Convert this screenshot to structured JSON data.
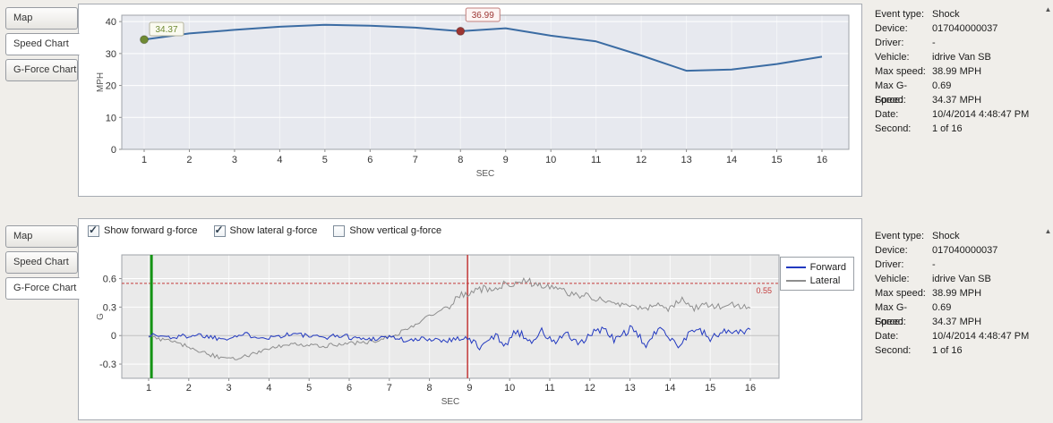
{
  "tabs": {
    "items": [
      "Map",
      "Speed Chart",
      "G-Force Chart"
    ],
    "top_active_index": 1,
    "bottom_active_index": 2
  },
  "event_info": {
    "rows": [
      {
        "label": "Event type:",
        "value": "Shock"
      },
      {
        "label": "Device:",
        "value": "017040000037"
      },
      {
        "label": "Driver:",
        "value": "-"
      },
      {
        "label": "Vehicle:",
        "value": "idrive Van SB"
      },
      {
        "label": "Max speed:",
        "value": "38.99 MPH"
      },
      {
        "label": "Max G-Force:",
        "value": "0.69"
      },
      {
        "label": "Speed:",
        "value": "34.37 MPH"
      },
      {
        "label": "Date:",
        "value": "10/4/2014 4:48:47 PM"
      },
      {
        "label": "Second:",
        "value": "1 of 16"
      }
    ]
  },
  "gforce_controls": {
    "checkboxes": [
      {
        "label": "Show forward g-force",
        "checked": true
      },
      {
        "label": "Show lateral g-force",
        "checked": true
      },
      {
        "label": "Show vertical g-force",
        "checked": false
      }
    ]
  },
  "chart_data": [
    {
      "id": "speed",
      "type": "line",
      "title": "",
      "xlabel": "SEC",
      "ylabel": "MPH",
      "x": [
        1,
        2,
        3,
        4,
        5,
        6,
        7,
        8,
        9,
        10,
        11,
        12,
        13,
        14,
        15,
        16
      ],
      "values": [
        34.37,
        36.3,
        37.4,
        38.4,
        38.99,
        38.7,
        38.1,
        36.99,
        37.9,
        35.6,
        33.8,
        29.4,
        24.6,
        25.0,
        26.7,
        29.0
      ],
      "ylim": [
        0,
        42
      ],
      "yticks": [
        0,
        10,
        20,
        30,
        40
      ],
      "xticks": [
        1,
        2,
        3,
        4,
        5,
        6,
        7,
        8,
        9,
        10,
        11,
        12,
        13,
        14,
        15,
        16
      ],
      "line_color": "#3b6ca3",
      "plot_bg": "#e7e9ef",
      "markers": [
        {
          "x": 1,
          "value": 34.37,
          "label": "34.37",
          "color": "#6f8a33",
          "box_bg": "#fafaf0",
          "box_border": "#b4b49c"
        },
        {
          "x": 8,
          "value": 36.99,
          "label": "36.99",
          "color": "#9c3532",
          "box_bg": "#fdf4f3",
          "box_border": "#c17f7c"
        }
      ]
    },
    {
      "id": "gforce",
      "type": "line",
      "title": "",
      "xlabel": "SEC",
      "ylabel": "G",
      "ylim": [
        -0.45,
        0.85
      ],
      "yticks": [
        -0.3,
        0,
        0.3,
        0.6
      ],
      "xticks": [
        1,
        2,
        3,
        4,
        5,
        6,
        7,
        8,
        9,
        10,
        11,
        12,
        13,
        14,
        15,
        16
      ],
      "plot_bg": "#eaeaea",
      "threshold": {
        "value": 0.55,
        "label": "0.55",
        "color": "#c43b3b"
      },
      "event_lines": [
        {
          "name": "current-second-line",
          "x": 1.07,
          "color": "#149414",
          "width": 3
        },
        {
          "name": "shock-moment-line",
          "x": 8.95,
          "color": "#c43b3b",
          "width": 1.5
        }
      ],
      "noise_seed": 1337,
      "sample_step": 0.05,
      "legend_position": "top-right",
      "series": [
        {
          "name": "Forward",
          "color": "#2239c0",
          "noise": [
            {
              "to": 9,
              "amp": 0.028
            },
            {
              "to": 15.5,
              "amp": 0.045
            },
            {
              "to": 16,
              "amp": 0.03
            }
          ],
          "envelope": [
            [
              1,
              0.01
            ],
            [
              1.6,
              -0.02
            ],
            [
              2.2,
              0.01
            ],
            [
              2.8,
              -0.03
            ],
            [
              3.4,
              0.01
            ],
            [
              4,
              -0.02
            ],
            [
              4.6,
              0.02
            ],
            [
              5.2,
              -0.02
            ],
            [
              5.8,
              0.0
            ],
            [
              6.4,
              -0.04
            ],
            [
              7,
              -0.01
            ],
            [
              7.5,
              -0.06
            ],
            [
              7.9,
              -0.03
            ],
            [
              8.4,
              -0.05
            ],
            [
              8.9,
              -0.02
            ],
            [
              9.3,
              -0.13
            ],
            [
              9.6,
              0.0
            ],
            [
              9.9,
              -0.08
            ],
            [
              10.2,
              0.05
            ],
            [
              10.5,
              -0.06
            ],
            [
              10.8,
              0.04
            ],
            [
              11.1,
              -0.08
            ],
            [
              11.4,
              0.03
            ],
            [
              11.7,
              -0.11
            ],
            [
              12,
              0.0
            ],
            [
              12.3,
              0.08
            ],
            [
              12.6,
              -0.05
            ],
            [
              13,
              0.07
            ],
            [
              13.4,
              -0.09
            ],
            [
              13.8,
              0.09
            ],
            [
              14.2,
              -0.11
            ],
            [
              14.6,
              0.08
            ],
            [
              15,
              -0.03
            ],
            [
              15.4,
              0.05
            ],
            [
              15.8,
              0.03
            ],
            [
              16,
              0.07
            ]
          ]
        },
        {
          "name": "Lateral",
          "color": "#8e8e8e",
          "noise": [
            {
              "to": 8.2,
              "amp": 0.022
            },
            {
              "to": 12.5,
              "amp": 0.04
            },
            {
              "to": 16,
              "amp": 0.035
            }
          ],
          "envelope": [
            [
              1,
              -0.01
            ],
            [
              1.4,
              -0.05
            ],
            [
              1.8,
              -0.09
            ],
            [
              2.2,
              -0.15
            ],
            [
              2.6,
              -0.21
            ],
            [
              3,
              -0.25
            ],
            [
              3.4,
              -0.22
            ],
            [
              3.8,
              -0.17
            ],
            [
              4.2,
              -0.12
            ],
            [
              4.6,
              -0.1
            ],
            [
              5,
              -0.09
            ],
            [
              5.4,
              -0.11
            ],
            [
              5.8,
              -0.09
            ],
            [
              6.2,
              -0.08
            ],
            [
              6.6,
              -0.06
            ],
            [
              7,
              -0.02
            ],
            [
              7.3,
              0.04
            ],
            [
              7.6,
              0.11
            ],
            [
              7.9,
              0.18
            ],
            [
              8.2,
              0.26
            ],
            [
              8.5,
              0.32
            ],
            [
              8.8,
              0.43
            ],
            [
              9.1,
              0.46
            ],
            [
              9.4,
              0.5
            ],
            [
              9.7,
              0.47
            ],
            [
              9.9,
              0.57
            ],
            [
              10.1,
              0.51
            ],
            [
              10.35,
              0.6
            ],
            [
              10.6,
              0.54
            ],
            [
              10.9,
              0.52
            ],
            [
              11.2,
              0.48
            ],
            [
              11.5,
              0.45
            ],
            [
              11.8,
              0.43
            ],
            [
              12.1,
              0.39
            ],
            [
              12.4,
              0.36
            ],
            [
              12.7,
              0.33
            ],
            [
              13,
              0.31
            ],
            [
              13.35,
              0.27
            ],
            [
              13.7,
              0.33
            ],
            [
              14,
              0.28
            ],
            [
              14.3,
              0.39
            ],
            [
              14.6,
              0.29
            ],
            [
              14.9,
              0.34
            ],
            [
              15.2,
              0.3
            ],
            [
              15.5,
              0.33
            ],
            [
              15.8,
              0.29
            ],
            [
              16,
              0.31
            ]
          ]
        }
      ]
    }
  ]
}
